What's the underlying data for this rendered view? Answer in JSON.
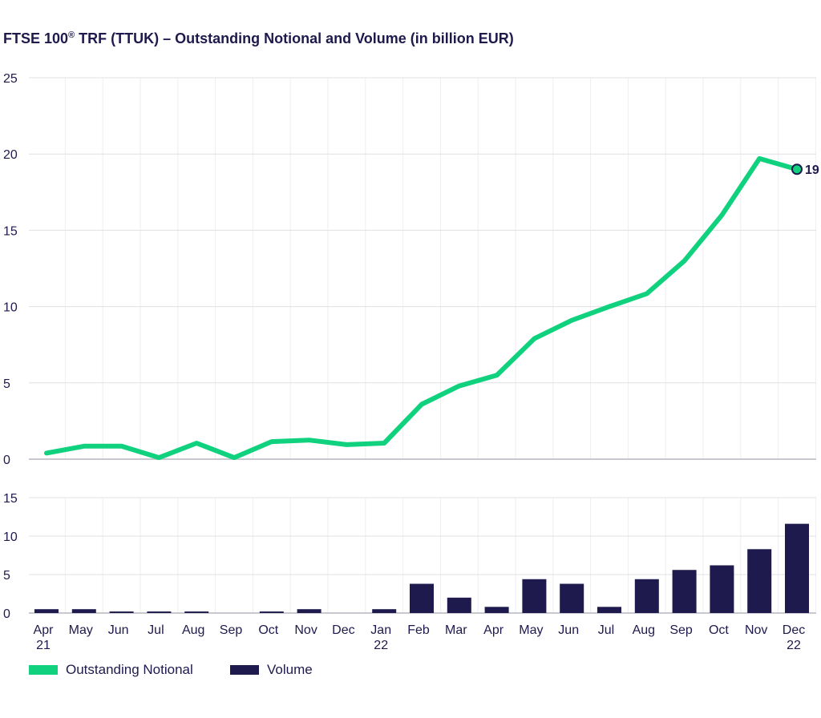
{
  "title": {
    "main": "FTSE 100",
    "sup": "®",
    "rest": " TRF (TTUK) – Outstanding Notional and Volume (in billion EUR)"
  },
  "colors": {
    "notional": "#10d27e",
    "volume": "#1e1a4d",
    "grid": "#e0e0e6",
    "text": "#1e1a4d"
  },
  "legend": {
    "notional": "Outstanding Notional",
    "volume": "Volume"
  },
  "chart_data": [
    {
      "type": "line",
      "series_name": "Outstanding Notional",
      "categories": [
        "Apr 21",
        "May",
        "Jun",
        "Jul",
        "Aug",
        "Sep",
        "Oct",
        "Nov",
        "Dec",
        "Jan 22",
        "Feb",
        "Mar",
        "Apr",
        "May",
        "Jun",
        "Jul",
        "Aug",
        "Sep",
        "Oct",
        "Nov",
        "Dec 22"
      ],
      "values": [
        0.4,
        0.85,
        0.85,
        0.1,
        1.05,
        0.1,
        1.15,
        1.25,
        0.95,
        1.05,
        3.6,
        4.8,
        5.5,
        7.9,
        9.1,
        10.0,
        10.85,
        13.0,
        16.0,
        19.7,
        19.0
      ],
      "ylim": [
        0,
        25
      ],
      "yticks": [
        "0",
        "5",
        "10",
        "15",
        "20",
        "25"
      ],
      "end_label": "19",
      "grid": true
    },
    {
      "type": "bar",
      "series_name": "Volume",
      "categories": [
        "Apr 21",
        "May",
        "Jun",
        "Jul",
        "Aug",
        "Sep",
        "Oct",
        "Nov",
        "Dec",
        "Jan 22",
        "Feb",
        "Mar",
        "Apr",
        "May",
        "Jun",
        "Jul",
        "Aug",
        "Sep",
        "Oct",
        "Nov",
        "Dec 22"
      ],
      "values": [
        0.5,
        0.5,
        0.2,
        0.2,
        0.2,
        0.0,
        0.2,
        0.5,
        0.0,
        0.5,
        3.8,
        2.0,
        0.8,
        4.4,
        3.8,
        0.8,
        4.4,
        5.6,
        6.2,
        8.3,
        11.6
      ],
      "ylim": [
        0,
        15
      ],
      "yticks": [
        "0",
        "5",
        "10",
        "15"
      ],
      "legend_position": "bottom-left",
      "grid": true
    }
  ],
  "x_labels": [
    {
      "line1": "Apr",
      "line2": "21"
    },
    {
      "line1": "May",
      "line2": ""
    },
    {
      "line1": "Jun",
      "line2": ""
    },
    {
      "line1": "Jul",
      "line2": ""
    },
    {
      "line1": "Aug",
      "line2": ""
    },
    {
      "line1": "Sep",
      "line2": ""
    },
    {
      "line1": "Oct",
      "line2": ""
    },
    {
      "line1": "Nov",
      "line2": ""
    },
    {
      "line1": "Dec",
      "line2": ""
    },
    {
      "line1": "Jan",
      "line2": "22"
    },
    {
      "line1": "Feb",
      "line2": ""
    },
    {
      "line1": "Mar",
      "line2": ""
    },
    {
      "line1": "Apr",
      "line2": ""
    },
    {
      "line1": "May",
      "line2": ""
    },
    {
      "line1": "Jun",
      "line2": ""
    },
    {
      "line1": "Jul",
      "line2": ""
    },
    {
      "line1": "Aug",
      "line2": ""
    },
    {
      "line1": "Sep",
      "line2": ""
    },
    {
      "line1": "Oct",
      "line2": ""
    },
    {
      "line1": "Nov",
      "line2": ""
    },
    {
      "line1": "Dec",
      "line2": "22"
    }
  ]
}
